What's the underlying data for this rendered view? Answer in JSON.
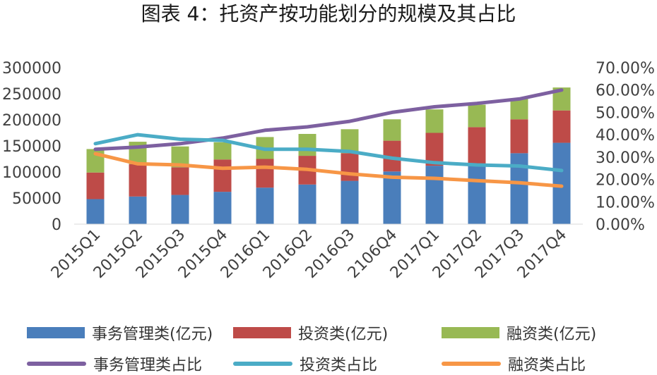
{
  "title": "图表 4：托资产按功能划分的规模及其占比",
  "chart_data": {
    "type": "bar",
    "stacked": true,
    "categories": [
      "2015Q1",
      "2015Q2",
      "2015Q3",
      "2015Q4",
      "2016Q1",
      "2016Q2",
      "2016Q3",
      "2106Q4",
      "2017Q1",
      "2017Q2",
      "2017Q3",
      "2017Q4"
    ],
    "series": [
      {
        "name": "事务管理类(亿元)",
        "type": "bar",
        "axis": "left",
        "color": "#4A7EBB",
        "values": [
          48000,
          53000,
          56000,
          62000,
          70000,
          76000,
          83000,
          101000,
          112000,
          116000,
          136000,
          156000
        ]
      },
      {
        "name": "投资类(亿元)",
        "type": "bar",
        "axis": "left",
        "color": "#BE4B48",
        "values": [
          51000,
          62000,
          53000,
          62000,
          55000,
          55000,
          53000,
          59000,
          63000,
          70000,
          65000,
          62000
        ]
      },
      {
        "name": "融资类(亿元)",
        "type": "bar",
        "axis": "left",
        "color": "#98B954",
        "values": [
          45000,
          43000,
          40000,
          33000,
          42000,
          42000,
          46000,
          41000,
          45000,
          43000,
          39000,
          44000
        ]
      },
      {
        "name": "事务管理类占比",
        "type": "line",
        "axis": "right",
        "color": "#7D60A0",
        "values": [
          33.5,
          34.5,
          36.0,
          38.5,
          42.0,
          43.5,
          46.0,
          50.0,
          52.5,
          54.0,
          56.0,
          60.0
        ]
      },
      {
        "name": "投资类占比",
        "type": "line",
        "axis": "right",
        "color": "#4BACC6",
        "values": [
          36.0,
          40.0,
          38.0,
          37.5,
          33.5,
          33.5,
          32.5,
          29.5,
          27.5,
          26.5,
          26.0,
          24.0
        ]
      },
      {
        "name": "融资类占比",
        "type": "line",
        "axis": "right",
        "color": "#F79646",
        "values": [
          31.5,
          27.0,
          26.5,
          25.0,
          25.5,
          24.5,
          22.5,
          21.0,
          20.5,
          19.5,
          18.5,
          17.0
        ]
      }
    ],
    "y_left": {
      "ylim": [
        0,
        300000
      ],
      "ticks": [
        "0",
        "50000",
        "100000",
        "150000",
        "200000",
        "250000",
        "300000"
      ]
    },
    "y_right": {
      "ylim": [
        0,
        70
      ],
      "ticks": [
        "0.00%",
        "10.00%",
        "20.00%",
        "30.00%",
        "40.00%",
        "50.00%",
        "60.00%",
        "70.00%"
      ]
    },
    "grid": false,
    "legend_position": "bottom"
  }
}
